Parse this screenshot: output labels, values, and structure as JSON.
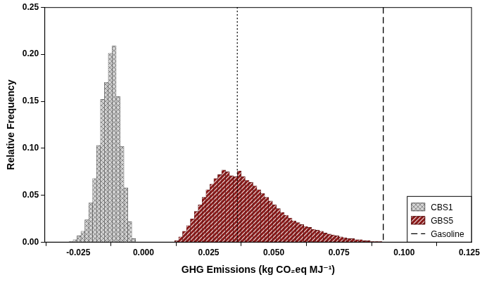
{
  "chart_data": {
    "type": "histogram",
    "x_label": "GHG Emissions (kg CO₂eq MJ⁻¹)",
    "y_label": "Relative Frequency",
    "xlim": [
      -0.038,
      0.126
    ],
    "xticks": [
      {
        "value": -0.025,
        "label": "-0.025"
      },
      {
        "value": 0,
        "label": "0.000"
      },
      {
        "value": 0.025,
        "label": "0.025"
      },
      {
        "value": 0.05,
        "label": "0.050"
      },
      {
        "value": 0.075,
        "label": "0.075"
      },
      {
        "value": 0.1,
        "label": "0.100"
      },
      {
        "value": 0.125,
        "label": "0.125"
      }
    ],
    "ylim": [
      0,
      0.25
    ],
    "yticks": [
      {
        "value": 0,
        "label": "0.00"
      },
      {
        "value": 0.05,
        "label": "0.05"
      },
      {
        "value": 0.1,
        "label": "0.10"
      },
      {
        "value": 0.15,
        "label": "0.15"
      },
      {
        "value": 0.2,
        "label": "0.20"
      },
      {
        "value": 0.25,
        "label": "0.25"
      }
    ],
    "grid": false,
    "legend": "lower right",
    "series": [
      {
        "name": "CBS1",
        "color": "#d4d4d4",
        "bins": [
          -0.0285,
          -0.027,
          -0.0255,
          -0.024,
          -0.0225,
          -0.021,
          -0.0195,
          -0.018,
          -0.0165,
          -0.015,
          -0.0135,
          -0.012,
          -0.0105,
          -0.009,
          -0.0075,
          -0.006,
          -0.0045,
          -0.003
        ],
        "values": [
          0.001,
          0.003,
          0.007,
          0.012,
          0.024,
          0.042,
          0.068,
          0.103,
          0.152,
          0.17,
          0.201,
          0.209,
          0.155,
          0.102,
          0.058,
          0.022,
          0.004
        ]
      },
      {
        "name": "GBS5",
        "color": "#8b1a1a",
        "bins": [
          0.012,
          0.0135,
          0.015,
          0.0165,
          0.018,
          0.0195,
          0.021,
          0.0225,
          0.024,
          0.0255,
          0.027,
          0.0285,
          0.03,
          0.0315,
          0.033,
          0.0345,
          0.036,
          0.0375,
          0.039,
          0.0405,
          0.042,
          0.0435,
          0.045,
          0.0465,
          0.048,
          0.0495,
          0.051,
          0.0525,
          0.054,
          0.0555,
          0.057,
          0.0585,
          0.06,
          0.0615,
          0.063,
          0.0645,
          0.066,
          0.0675,
          0.069,
          0.0705,
          0.072,
          0.0735,
          0.075,
          0.0765,
          0.078,
          0.0795,
          0.081,
          0.0825,
          0.084,
          0.0855,
          0.087,
          0.0885,
          0.09,
          0.0915
        ],
        "values": [
          0.002,
          0.006,
          0.012,
          0.018,
          0.025,
          0.033,
          0.04,
          0.048,
          0.056,
          0.062,
          0.068,
          0.072,
          0.077,
          0.075,
          0.071,
          0.07,
          0.076,
          0.07,
          0.066,
          0.064,
          0.06,
          0.056,
          0.052,
          0.048,
          0.044,
          0.04,
          0.036,
          0.032,
          0.029,
          0.026,
          0.023,
          0.021,
          0.019,
          0.017,
          0.016,
          0.014,
          0.013,
          0.012,
          0.01,
          0.009,
          0.008,
          0.007,
          0.006,
          0.005,
          0.004,
          0.004,
          0.003,
          0.003,
          0.002,
          0.002,
          0.001,
          0.001,
          0.001
        ]
      }
    ],
    "vlines": [
      {
        "x": 0.036,
        "line_style": "dotted"
      },
      {
        "x": 0.092,
        "line_style": "dashed",
        "name": "Gasoline"
      }
    ]
  }
}
